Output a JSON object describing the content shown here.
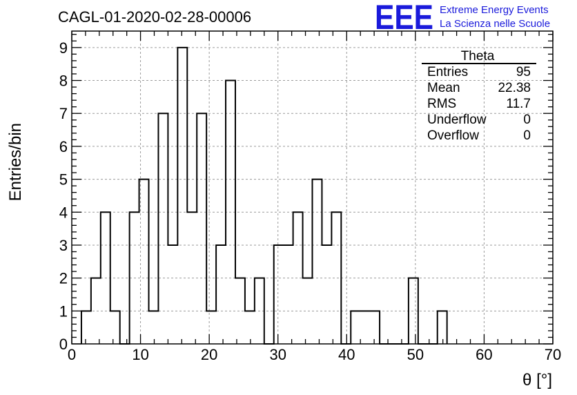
{
  "title": "CAGL-01-2020-02-28-00006",
  "logo": {
    "mark": "EEE",
    "line1": "Extreme Energy Events",
    "line2": "La Scienza nelle Scuole",
    "color": "#1a1adb"
  },
  "stats": {
    "name": "Theta",
    "rows": [
      {
        "label": "Entries",
        "value": "95"
      },
      {
        "label": "Mean",
        "value": "22.38"
      },
      {
        "label": "RMS",
        "value": "11.7"
      },
      {
        "label": "Underflow",
        "value": "0"
      },
      {
        "label": "Overflow",
        "value": "0"
      }
    ]
  },
  "chart_data": {
    "type": "histogram",
    "title": "CAGL-01-2020-02-28-00006",
    "xlabel": "θ [°]",
    "ylabel": "Entries/bin",
    "xlim": [
      0,
      70
    ],
    "ylim": [
      0,
      9.5
    ],
    "xticks": [
      "0",
      "10",
      "20",
      "30",
      "40",
      "50",
      "60",
      "70"
    ],
    "yticks": [
      "0",
      "1",
      "2",
      "3",
      "4",
      "5",
      "6",
      "7",
      "8",
      "9"
    ],
    "grid": true,
    "bin_width": 1.4,
    "bin_edges_start": 1.4,
    "values": [
      1,
      2,
      4,
      1,
      0,
      4,
      5,
      1,
      7,
      3,
      9,
      4,
      7,
      1,
      3,
      8,
      2,
      1,
      2,
      0,
      3,
      3,
      4,
      2,
      5,
      3,
      4,
      0,
      1,
      1,
      1,
      0,
      0,
      0,
      2,
      0,
      0,
      1
    ]
  }
}
